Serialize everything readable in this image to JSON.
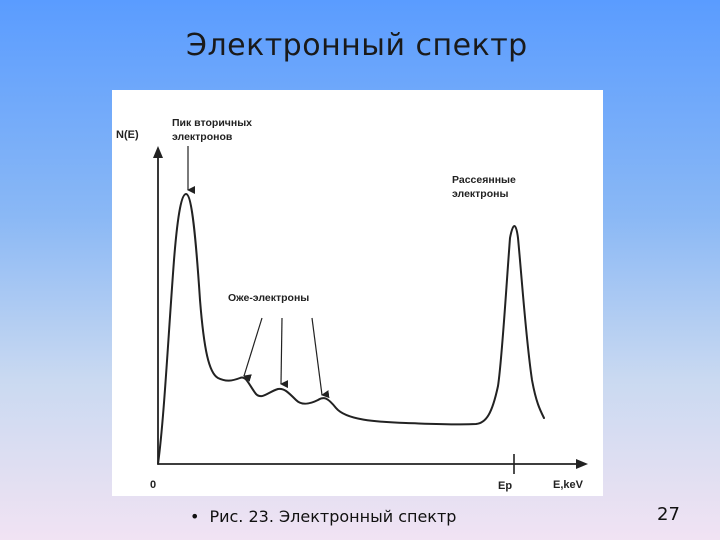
{
  "slide": {
    "title": "Электронный спектр",
    "caption": "Рис. 23. Электронный спектр",
    "bullet": "•",
    "page_number": "27"
  },
  "figure": {
    "y_axis_label": "N(E)",
    "x_axis_label": "E,keV",
    "origin_label": "0",
    "ep_label": "Ep",
    "annotations": {
      "secondary_peak_line1": "Пик вторичных",
      "secondary_peak_line2": "электронов",
      "auger": "Оже-электроны",
      "scattered_line1": "Рассеянные",
      "scattered_line2": "электроны"
    },
    "colors": {
      "curve": "#222222",
      "background": "#ffffff"
    }
  }
}
